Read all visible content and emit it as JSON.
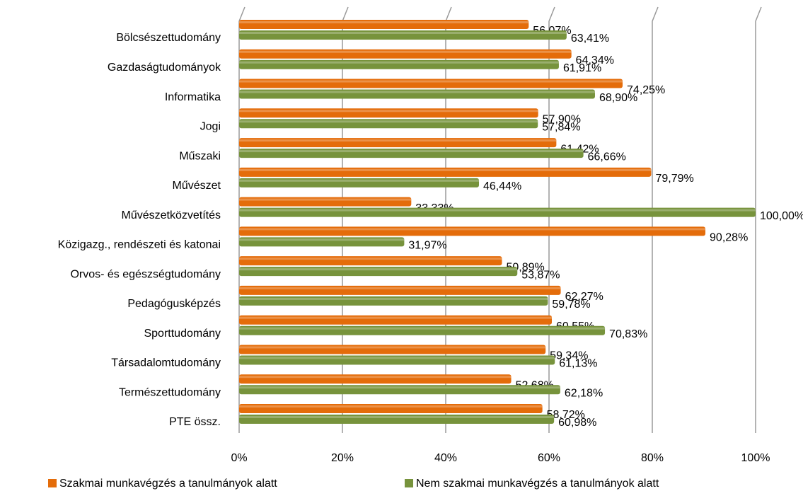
{
  "chart_data": {
    "type": "bar",
    "orientation": "horizontal",
    "categories": [
      "Bölcsészettudomány",
      "Gazdaságtudományok",
      "Informatika",
      "Jogi",
      "Műszaki",
      "Művészet",
      "Művészetközvetítés",
      "Közigazg., rendészeti és katonai",
      "Orvos- és egészségtudomány",
      "Pedagógusképzés",
      "Sporttudomány",
      "Társadalomtudomány",
      "Természettudomány",
      "PTE össz."
    ],
    "series": [
      {
        "name": "Szakmai munkavégzés a tanulmányok alatt",
        "color": "#e46c0a",
        "values": [
          56.07,
          64.34,
          74.25,
          57.9,
          61.42,
          79.79,
          33.33,
          90.28,
          50.89,
          62.27,
          60.55,
          59.34,
          52.68,
          58.72
        ],
        "value_labels": [
          "56,07%",
          "64,34%",
          "74,25%",
          "57,90%",
          "61,42%",
          "79,79%",
          "33,33%",
          "90,28%",
          "50,89%",
          "62,27%",
          "60,55%",
          "59,34%",
          "52,68%",
          "58,72%"
        ]
      },
      {
        "name": "Nem szakmai munkavégzés a tanulmányok alatt",
        "color": "#77933c",
        "values": [
          63.41,
          61.91,
          68.9,
          57.84,
          66.66,
          46.44,
          100.0,
          31.97,
          53.87,
          59.78,
          70.83,
          61.13,
          62.18,
          60.98
        ],
        "value_labels": [
          "63,41%",
          "61,91%",
          "68,90%",
          "57,84%",
          "66,66%",
          "46,44%",
          "100,00%",
          "31,97%",
          "53,87%",
          "59,78%",
          "70,83%",
          "61,13%",
          "62,18%",
          "60,98%"
        ]
      }
    ],
    "xlim": [
      0,
      100
    ],
    "xticks": [
      {
        "value": 0,
        "label": "0%"
      },
      {
        "value": 20,
        "label": "20%"
      },
      {
        "value": 40,
        "label": "40%"
      },
      {
        "value": 60,
        "label": "60%"
      },
      {
        "value": 80,
        "label": "80%"
      },
      {
        "value": 100,
        "label": "100%"
      }
    ],
    "grid": true,
    "legend": "bottom"
  }
}
